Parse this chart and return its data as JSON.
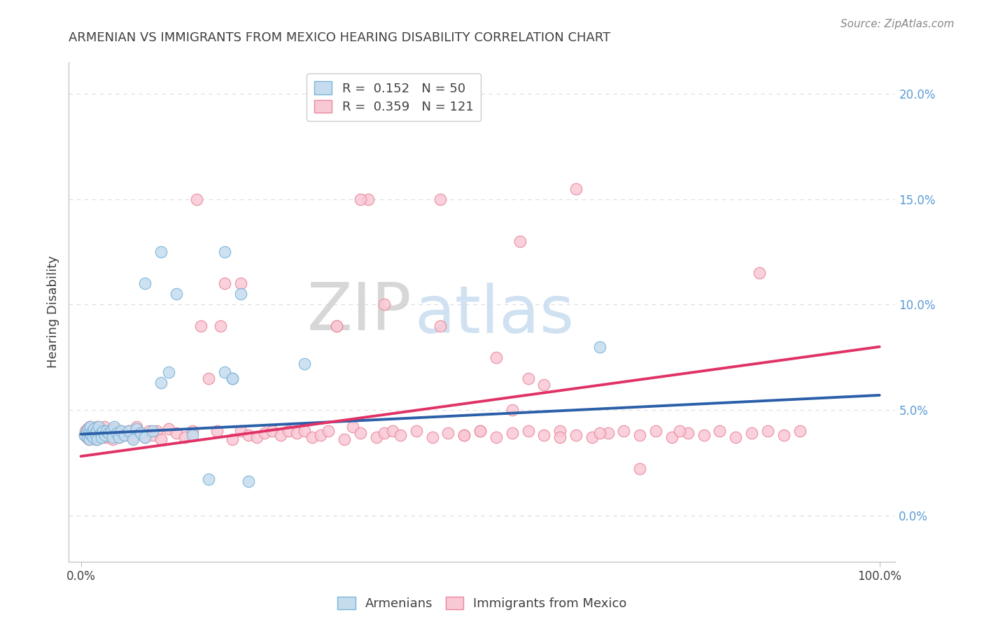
{
  "title": "ARMENIAN VS IMMIGRANTS FROM MEXICO HEARING DISABILITY CORRELATION CHART",
  "source": "Source: ZipAtlas.com",
  "ylabel": "Hearing Disability",
  "blue_scatter_color": "#C5DCEF",
  "blue_scatter_edge": "#7AB4D8",
  "pink_scatter_color": "#F9C8D5",
  "pink_scatter_edge": "#E8899A",
  "blue_line_color": "#2B5FA8",
  "pink_line_color": "#E03265",
  "title_color": "#404040",
  "source_color": "#888888",
  "ytick_color": "#5B9BD5",
  "xtick_color": "#404040",
  "grid_color": "#DDDDDD",
  "watermark_zip_color": "#CCCCCC",
  "watermark_atlas_color": "#C5DCF0",
  "legend_box_color": "#DDDDDD",
  "armenians_x": [
    0.005,
    0.007,
    0.008,
    0.009,
    0.01,
    0.011,
    0.012,
    0.013,
    0.014,
    0.015,
    0.016,
    0.018,
    0.019,
    0.02,
    0.021,
    0.022,
    0.025,
    0.026,
    0.028,
    0.03,
    0.032,
    0.035,
    0.038,
    0.04,
    0.042,
    0.045,
    0.048,
    0.05,
    0.055,
    0.06,
    0.065,
    0.07,
    0.075,
    0.08,
    0.09,
    0.1,
    0.11,
    0.14,
    0.16,
    0.19,
    0.21,
    0.28,
    0.18,
    0.2,
    0.65,
    0.18,
    0.12,
    0.1,
    0.08,
    0.19
  ],
  "armenians_y": [
    0.038,
    0.04,
    0.037,
    0.041,
    0.039,
    0.036,
    0.042,
    0.038,
    0.04,
    0.037,
    0.041,
    0.039,
    0.038,
    0.04,
    0.036,
    0.042,
    0.039,
    0.037,
    0.04,
    0.038,
    0.04,
    0.039,
    0.04,
    0.037,
    0.042,
    0.039,
    0.037,
    0.04,
    0.038,
    0.04,
    0.036,
    0.041,
    0.039,
    0.037,
    0.04,
    0.063,
    0.068,
    0.038,
    0.017,
    0.065,
    0.016,
    0.072,
    0.125,
    0.105,
    0.08,
    0.068,
    0.105,
    0.125,
    0.11,
    0.065
  ],
  "mexico_x": [
    0.005,
    0.006,
    0.007,
    0.008,
    0.009,
    0.01,
    0.011,
    0.012,
    0.013,
    0.014,
    0.015,
    0.016,
    0.017,
    0.018,
    0.019,
    0.02,
    0.021,
    0.022,
    0.023,
    0.024,
    0.025,
    0.026,
    0.027,
    0.028,
    0.029,
    0.03,
    0.032,
    0.034,
    0.036,
    0.038,
    0.04,
    0.042,
    0.045,
    0.048,
    0.05,
    0.055,
    0.06,
    0.065,
    0.07,
    0.075,
    0.08,
    0.085,
    0.09,
    0.095,
    0.1,
    0.11,
    0.12,
    0.13,
    0.14,
    0.15,
    0.16,
    0.17,
    0.18,
    0.19,
    0.2,
    0.21,
    0.22,
    0.23,
    0.24,
    0.25,
    0.26,
    0.27,
    0.28,
    0.29,
    0.3,
    0.31,
    0.32,
    0.33,
    0.34,
    0.35,
    0.36,
    0.37,
    0.38,
    0.39,
    0.4,
    0.42,
    0.44,
    0.46,
    0.48,
    0.5,
    0.52,
    0.54,
    0.56,
    0.58,
    0.6,
    0.62,
    0.64,
    0.66,
    0.68,
    0.7,
    0.72,
    0.74,
    0.76,
    0.78,
    0.8,
    0.82,
    0.84,
    0.86,
    0.88,
    0.9,
    0.145,
    0.45,
    0.62,
    0.85,
    0.55,
    0.32,
    0.175,
    0.2,
    0.35,
    0.38,
    0.45,
    0.48,
    0.5,
    0.52,
    0.54,
    0.56,
    0.58,
    0.6,
    0.65,
    0.7,
    0.75
  ],
  "mexico_y": [
    0.038,
    0.04,
    0.037,
    0.041,
    0.039,
    0.036,
    0.042,
    0.038,
    0.04,
    0.037,
    0.041,
    0.039,
    0.038,
    0.04,
    0.036,
    0.042,
    0.039,
    0.037,
    0.04,
    0.038,
    0.04,
    0.039,
    0.04,
    0.037,
    0.042,
    0.039,
    0.037,
    0.04,
    0.038,
    0.04,
    0.036,
    0.041,
    0.039,
    0.037,
    0.04,
    0.038,
    0.04,
    0.037,
    0.042,
    0.039,
    0.037,
    0.04,
    0.038,
    0.04,
    0.036,
    0.041,
    0.039,
    0.037,
    0.04,
    0.09,
    0.065,
    0.04,
    0.11,
    0.036,
    0.04,
    0.038,
    0.037,
    0.039,
    0.04,
    0.038,
    0.04,
    0.039,
    0.04,
    0.037,
    0.038,
    0.04,
    0.09,
    0.036,
    0.042,
    0.039,
    0.15,
    0.037,
    0.039,
    0.04,
    0.038,
    0.04,
    0.037,
    0.039,
    0.038,
    0.04,
    0.075,
    0.05,
    0.065,
    0.062,
    0.04,
    0.038,
    0.037,
    0.039,
    0.04,
    0.038,
    0.04,
    0.037,
    0.039,
    0.038,
    0.04,
    0.037,
    0.039,
    0.04,
    0.038,
    0.04,
    0.15,
    0.15,
    0.155,
    0.115,
    0.13,
    0.09,
    0.09,
    0.11,
    0.15,
    0.1,
    0.09,
    0.038,
    0.04,
    0.037,
    0.039,
    0.04,
    0.038,
    0.037,
    0.039,
    0.022,
    0.04
  ],
  "blue_line_x": [
    0.0,
    1.0
  ],
  "blue_line_y": [
    0.0385,
    0.057
  ],
  "pink_line_x": [
    0.0,
    1.0
  ],
  "pink_line_y": [
    0.028,
    0.08
  ],
  "xlim": [
    -0.015,
    1.02
  ],
  "ylim": [
    -0.022,
    0.215
  ],
  "yticks": [
    0.0,
    0.05,
    0.1,
    0.15,
    0.2
  ],
  "ytick_labels": [
    "0.0%",
    "5.0%",
    "10.0%",
    "15.0%",
    "20.0%"
  ]
}
